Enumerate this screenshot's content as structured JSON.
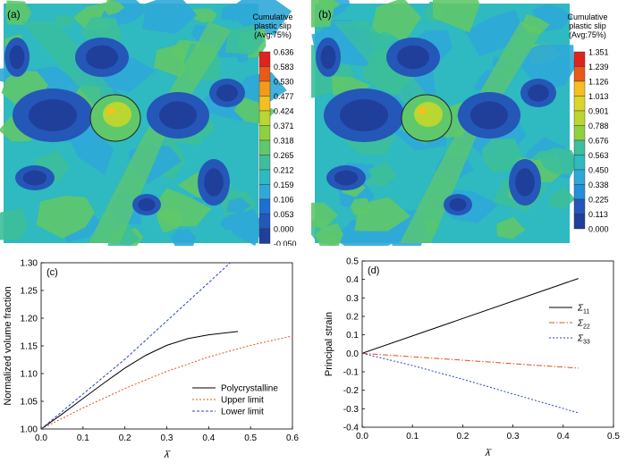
{
  "colors": {
    "contour": [
      "#1f3f9a",
      "#2457b8",
      "#1d6fd0",
      "#2390d8",
      "#2fa8d8",
      "#2fb9c0",
      "#3cbf9a",
      "#5fc86a",
      "#8fd040",
      "#b9d631",
      "#d9d52b",
      "#f3bf21",
      "#f39a1a",
      "#ea5a17",
      "#e0231c"
    ],
    "polycrystalline": "#000000",
    "upper": "#e0531d",
    "lower": "#2a45c8",
    "s11": "#000000",
    "s22": "#e0531d",
    "s33": "#2a45c8"
  },
  "chart_data": [
    {
      "type": "heatmap",
      "panel_label": "(a)",
      "legend_title": [
        "Cumulative",
        "plastic slip",
        "(Avg:75%)"
      ],
      "scale_values": [
        "0.636",
        "0.583",
        "0.530",
        "0.477",
        "0.424",
        "0.371",
        "0.318",
        "0.265",
        "0.212",
        "0.159",
        "0.106",
        "0.053",
        "0.000",
        "-0.050"
      ]
    },
    {
      "type": "heatmap",
      "panel_label": "(b)",
      "legend_title": [
        "Cumulative",
        "plastic slip",
        "(Avg:75%)"
      ],
      "scale_values": [
        "1.351",
        "1.239",
        "1.126",
        "1.013",
        "0.901",
        "0.788",
        "0.676",
        "0.563",
        "0.450",
        "0.338",
        "0.225",
        "0.113",
        "0.000"
      ]
    },
    {
      "type": "line",
      "panel_label": "(c)",
      "xlabel": "λ̄",
      "ylabel": "Normalized volume fraction",
      "xlim": [
        0,
        0.6
      ],
      "ylim": [
        1.0,
        1.3
      ],
      "xticks": [
        "0.0",
        "0.1",
        "0.2",
        "0.3",
        "0.4",
        "0.5",
        "0.6"
      ],
      "yticks": [
        "1.00",
        "1.05",
        "1.10",
        "1.15",
        "1.20",
        "1.25",
        "1.30"
      ],
      "legend_position": "bottom-right",
      "series": [
        {
          "name": "Polycrystalline",
          "style": "solid",
          "points": [
            [
              0,
              1.0
            ],
            [
              0.05,
              1.027
            ],
            [
              0.1,
              1.055
            ],
            [
              0.15,
              1.083
            ],
            [
              0.2,
              1.11
            ],
            [
              0.25,
              1.133
            ],
            [
              0.3,
              1.151
            ],
            [
              0.35,
              1.163
            ],
            [
              0.4,
              1.17
            ],
            [
              0.47,
              1.176
            ]
          ]
        },
        {
          "name": "Upper limit",
          "style": "dotted",
          "points": [
            [
              0,
              1.0
            ],
            [
              0.1,
              1.038
            ],
            [
              0.2,
              1.073
            ],
            [
              0.3,
              1.104
            ],
            [
              0.4,
              1.13
            ],
            [
              0.5,
              1.151
            ],
            [
              0.6,
              1.168
            ]
          ]
        },
        {
          "name": "Lower limit",
          "style": "dashed",
          "points": [
            [
              0,
              1.0
            ],
            [
              0.1,
              1.063
            ],
            [
              0.2,
              1.126
            ],
            [
              0.3,
              1.195
            ],
            [
              0.4,
              1.264
            ],
            [
              0.5,
              1.334
            ]
          ]
        }
      ]
    },
    {
      "type": "line",
      "panel_label": "(d)",
      "xlabel": "λ̄",
      "ylabel": "Principal strain",
      "xlim": [
        0,
        0.5
      ],
      "ylim": [
        -0.4,
        0.5
      ],
      "xticks": [
        "0.0",
        "0.1",
        "0.2",
        "0.3",
        "0.4",
        "0.5"
      ],
      "yticks": [
        "0.5",
        "0.4",
        "0.3",
        "0.2",
        "0.1",
        "0.0",
        "-0.1",
        "-0.2",
        "-0.3",
        "-0.4"
      ],
      "legend_position": "right",
      "series": [
        {
          "name": "Σ",
          "sub": "11",
          "style": "solid",
          "points": [
            [
              0,
              0
            ],
            [
              0.43,
              0.405
            ]
          ]
        },
        {
          "name": "Σ",
          "sub": "22",
          "style": "dashdot",
          "points": [
            [
              0,
              0
            ],
            [
              0.43,
              -0.08
            ]
          ]
        },
        {
          "name": "Σ",
          "sub": "33",
          "style": "dotted",
          "points": [
            [
              0,
              0
            ],
            [
              0.1,
              -0.066
            ],
            [
              0.2,
              -0.14
            ],
            [
              0.3,
              -0.22
            ],
            [
              0.43,
              -0.322
            ]
          ]
        }
      ]
    }
  ]
}
